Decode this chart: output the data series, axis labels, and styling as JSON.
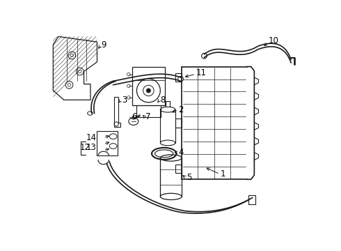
{
  "background_color": "#ffffff",
  "line_color": "#1a1a1a",
  "label_color": "#000000",
  "fig_w": 4.9,
  "fig_h": 3.6,
  "dpi": 100
}
